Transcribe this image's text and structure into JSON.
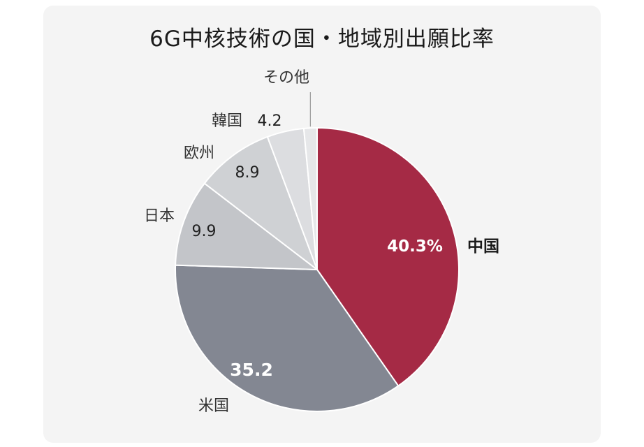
{
  "chart_data": {
    "type": "pie",
    "title": "6G中核技術の国・地域別出願比率",
    "unit": "%",
    "start": "12 o'clock",
    "direction": "clockwise",
    "slices": [
      {
        "label": "中国",
        "value": 40.3,
        "value_label": "40.3%",
        "color": "#a52a45"
      },
      {
        "label": "米国",
        "value": 35.2,
        "value_label": "35.2",
        "color": "#838792"
      },
      {
        "label": "日本",
        "value": 9.9,
        "value_label": "9.9",
        "color": "#c3c5c9"
      },
      {
        "label": "欧州",
        "value": 8.9,
        "value_label": "8.9",
        "color": "#cfd1d4"
      },
      {
        "label": "韓国",
        "value": 4.2,
        "value_label": "4.2",
        "color": "#dcdde0"
      },
      {
        "label": "その他",
        "value": 1.5,
        "value_label": "",
        "color": "#e6e7e9"
      }
    ]
  }
}
